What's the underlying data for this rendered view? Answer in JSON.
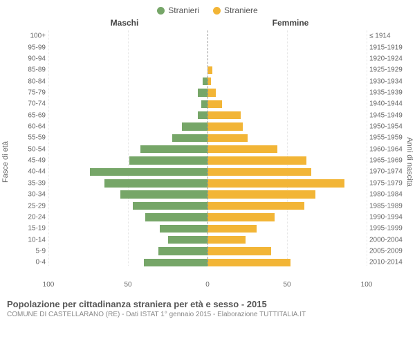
{
  "legend": {
    "male": {
      "label": "Stranieri",
      "color": "#76a668"
    },
    "female": {
      "label": "Straniere",
      "color": "#f2b536"
    }
  },
  "headers": {
    "male": "Maschi",
    "female": "Femmine"
  },
  "y_axis_left": "Fasce di età",
  "y_axis_right": "Anni di nascita",
  "chart": {
    "type": "population-pyramid",
    "x_max": 100,
    "x_ticks_left": [
      100,
      50,
      0
    ],
    "x_ticks_right": [
      0,
      50,
      100
    ],
    "background_color": "#ffffff",
    "grid_color": "#e5e5e5",
    "center_line_color": "#999999",
    "bar_colors": {
      "male": "#76a668",
      "female": "#f2b536"
    },
    "rows": [
      {
        "age": "100+",
        "year": "≤ 1914",
        "male": 0,
        "female": 0
      },
      {
        "age": "95-99",
        "year": "1915-1919",
        "male": 0,
        "female": 0
      },
      {
        "age": "90-94",
        "year": "1920-1924",
        "male": 0,
        "female": 0
      },
      {
        "age": "85-89",
        "year": "1925-1929",
        "male": 0,
        "female": 3
      },
      {
        "age": "80-84",
        "year": "1930-1934",
        "male": 3,
        "female": 2
      },
      {
        "age": "75-79",
        "year": "1935-1939",
        "male": 6,
        "female": 5
      },
      {
        "age": "70-74",
        "year": "1940-1944",
        "male": 4,
        "female": 9
      },
      {
        "age": "65-69",
        "year": "1945-1949",
        "male": 6,
        "female": 21
      },
      {
        "age": "60-64",
        "year": "1950-1954",
        "male": 16,
        "female": 22
      },
      {
        "age": "55-59",
        "year": "1955-1959",
        "male": 22,
        "female": 25
      },
      {
        "age": "50-54",
        "year": "1960-1964",
        "male": 42,
        "female": 44
      },
      {
        "age": "45-49",
        "year": "1965-1969",
        "male": 49,
        "female": 62
      },
      {
        "age": "40-44",
        "year": "1970-1974",
        "male": 74,
        "female": 65
      },
      {
        "age": "35-39",
        "year": "1975-1979",
        "male": 65,
        "female": 86
      },
      {
        "age": "30-34",
        "year": "1980-1984",
        "male": 55,
        "female": 68
      },
      {
        "age": "25-29",
        "year": "1985-1989",
        "male": 47,
        "female": 61
      },
      {
        "age": "20-24",
        "year": "1990-1994",
        "male": 39,
        "female": 42
      },
      {
        "age": "15-19",
        "year": "1995-1999",
        "male": 30,
        "female": 31
      },
      {
        "age": "10-14",
        "year": "2000-2004",
        "male": 25,
        "female": 24
      },
      {
        "age": "5-9",
        "year": "2005-2009",
        "male": 31,
        "female": 40
      },
      {
        "age": "0-4",
        "year": "2010-2014",
        "male": 40,
        "female": 52
      }
    ]
  },
  "footer": {
    "title": "Popolazione per cittadinanza straniera per età e sesso - 2015",
    "subtitle": "COMUNE DI CASTELLARANO (RE) - Dati ISTAT 1° gennaio 2015 - Elaborazione TUTTITALIA.IT"
  }
}
